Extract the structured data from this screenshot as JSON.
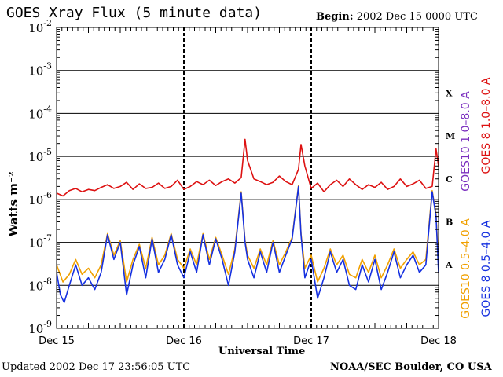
{
  "header": {
    "title": "GOES Xray Flux (5 minute data)",
    "begin_label": "Begin:",
    "begin_value": "2002 Dec 15 0000 UTC"
  },
  "footer": {
    "updated": "Updated 2002 Dec 17 23:56:05 UTC",
    "source": "NOAA/SEC Boulder, CO USA"
  },
  "colors": {
    "goes10_long": "#7b2fbf",
    "goes8_long": "#dd1111",
    "goes10_short": "#f0a000",
    "goes8_short": "#1530e0",
    "grid": "#000000"
  },
  "chart_data": {
    "type": "line",
    "title": "GOES Xray Flux (5 minute data)",
    "xlabel": "Universal Time",
    "ylabel": "Watts m⁻²",
    "y_scale": "log",
    "ylim": [
      1e-09,
      0.01
    ],
    "y_ticks": [
      {
        "value": 0.01,
        "base": "10",
        "exp": "-2"
      },
      {
        "value": 0.001,
        "base": "10",
        "exp": "-3"
      },
      {
        "value": 0.0001,
        "base": "10",
        "exp": "-4"
      },
      {
        "value": 1e-05,
        "base": "10",
        "exp": "-5"
      },
      {
        "value": 1e-06,
        "base": "10",
        "exp": "-6"
      },
      {
        "value": 1e-07,
        "base": "10",
        "exp": "-7"
      },
      {
        "value": 1e-08,
        "base": "10",
        "exp": "-8"
      },
      {
        "value": 1e-09,
        "base": "10",
        "exp": "-9"
      }
    ],
    "x_range_days": [
      0,
      3
    ],
    "x_ticks": [
      {
        "day": 0,
        "label": "Dec 15"
      },
      {
        "day": 1,
        "label": "Dec 16"
      },
      {
        "day": 2,
        "label": "Dec 17"
      },
      {
        "day": 3,
        "label": "Dec 18"
      }
    ],
    "flare_classes": [
      {
        "label": "X",
        "value": 0.0003
      },
      {
        "label": "M",
        "value": 3e-05
      },
      {
        "label": "C",
        "value": 3e-06
      },
      {
        "label": "B",
        "value": 3e-07
      },
      {
        "label": "A",
        "value": 3e-08
      }
    ],
    "legend": {
      "goes10_long": "GOES10 1.0–8.0 A",
      "goes8_long": "GOES 8 1.0–8.0 A",
      "goes10_short": "GOES10 0.5–4.0 A",
      "goes8_short": "GOES 8 0.5–4.0 A"
    },
    "series": [
      {
        "name": "GOES 8 1.0–8.0 A",
        "color": "#dd1111",
        "x": [
          0,
          0.05,
          0.1,
          0.15,
          0.2,
          0.25,
          0.3,
          0.35,
          0.4,
          0.45,
          0.5,
          0.55,
          0.6,
          0.65,
          0.7,
          0.75,
          0.8,
          0.85,
          0.9,
          0.95,
          1.0,
          1.05,
          1.1,
          1.15,
          1.2,
          1.25,
          1.3,
          1.35,
          1.4,
          1.45,
          1.48,
          1.5,
          1.55,
          1.6,
          1.65,
          1.7,
          1.75,
          1.8,
          1.85,
          1.9,
          1.92,
          1.95,
          2.0,
          2.05,
          2.1,
          2.15,
          2.2,
          2.25,
          2.3,
          2.35,
          2.4,
          2.45,
          2.5,
          2.55,
          2.6,
          2.65,
          2.7,
          2.75,
          2.8,
          2.85,
          2.9,
          2.95,
          2.98,
          3.0
        ],
        "y": [
          1.4e-06,
          1.2e-06,
          1.6e-06,
          1.8e-06,
          1.5e-06,
          1.7e-06,
          1.6e-06,
          1.9e-06,
          2.2e-06,
          1.8e-06,
          2e-06,
          2.5e-06,
          1.7e-06,
          2.3e-06,
          1.8e-06,
          1.9e-06,
          2.4e-06,
          1.8e-06,
          2e-06,
          2.8e-06,
          1.7e-06,
          2e-06,
          2.6e-06,
          2.2e-06,
          2.8e-06,
          2.1e-06,
          2.6e-06,
          3e-06,
          2.4e-06,
          3.2e-06,
          2.5e-05,
          8e-06,
          3e-06,
          2.6e-06,
          2.2e-06,
          2.5e-06,
          3.5e-06,
          2.6e-06,
          2.2e-06,
          5e-06,
          1.9e-05,
          6e-06,
          1.8e-06,
          2.4e-06,
          1.5e-06,
          2.2e-06,
          2.8e-06,
          2e-06,
          3e-06,
          2.2e-06,
          1.7e-06,
          2.2e-06,
          1.9e-06,
          2.5e-06,
          1.7e-06,
          2e-06,
          3e-06,
          2e-06,
          2.3e-06,
          2.8e-06,
          1.8e-06,
          2e-06,
          1.5e-05,
          6e-06
        ]
      },
      {
        "name": "GOES 8 0.5–4.0 A",
        "color": "#1530e0",
        "x": [
          0,
          0.03,
          0.06,
          0.1,
          0.15,
          0.2,
          0.25,
          0.3,
          0.35,
          0.4,
          0.45,
          0.5,
          0.55,
          0.6,
          0.65,
          0.7,
          0.75,
          0.8,
          0.85,
          0.9,
          0.95,
          1.0,
          1.05,
          1.1,
          1.15,
          1.2,
          1.25,
          1.3,
          1.35,
          1.4,
          1.45,
          1.48,
          1.5,
          1.55,
          1.6,
          1.65,
          1.7,
          1.75,
          1.8,
          1.85,
          1.9,
          1.92,
          1.95,
          2.0,
          2.05,
          2.1,
          2.15,
          2.2,
          2.25,
          2.3,
          2.35,
          2.4,
          2.45,
          2.5,
          2.55,
          2.6,
          2.65,
          2.7,
          2.75,
          2.8,
          2.85,
          2.9,
          2.95,
          2.98,
          3.0
        ],
        "y": [
          2e-08,
          6e-09,
          4e-09,
          1e-08,
          3e-08,
          1e-08,
          1.5e-08,
          8e-09,
          2e-08,
          1.5e-07,
          4e-08,
          1e-07,
          6e-09,
          3e-08,
          8e-08,
          1.5e-08,
          1.2e-07,
          2e-08,
          4e-08,
          1.5e-07,
          3e-08,
          1.5e-08,
          6e-08,
          2e-08,
          1.5e-07,
          3e-08,
          1.2e-07,
          4e-08,
          1e-08,
          6e-08,
          1.4e-06,
          1e-07,
          4e-08,
          1.5e-08,
          6e-08,
          2e-08,
          1e-07,
          2e-08,
          5e-08,
          1.2e-07,
          2e-06,
          1.5e-07,
          1.5e-08,
          4e-08,
          5e-09,
          1.5e-08,
          6e-08,
          2e-08,
          4e-08,
          1e-08,
          8e-09,
          3e-08,
          1.2e-08,
          4e-08,
          8e-09,
          2e-08,
          6e-08,
          1.5e-08,
          3e-08,
          5e-08,
          2e-08,
          3e-08,
          1.5e-06,
          4e-07,
          2e-08
        ]
      },
      {
        "name": "GOES10 0.5–4.0 A",
        "color": "#f0a000",
        "x": [
          0,
          0.05,
          0.1,
          0.15,
          0.2,
          0.25,
          0.3,
          0.35,
          0.4,
          0.45,
          0.5,
          0.55,
          0.6,
          0.65,
          0.7,
          0.75,
          0.8,
          0.85,
          0.9,
          0.95,
          1.0,
          1.05,
          1.1,
          1.15,
          1.2,
          1.25,
          1.3,
          1.35,
          1.4,
          1.45,
          1.48,
          1.5,
          1.55,
          1.6,
          1.65,
          1.7,
          1.75,
          1.8,
          1.85,
          1.9,
          1.92,
          1.95,
          2.0,
          2.05,
          2.1,
          2.15,
          2.2,
          2.25,
          2.3,
          2.35,
          2.4,
          2.45,
          2.5,
          2.55,
          2.6,
          2.65,
          2.7,
          2.75,
          2.8,
          2.85,
          2.9,
          2.95,
          2.98,
          3.0
        ],
        "y": [
          3e-08,
          1.2e-08,
          1.8e-08,
          4e-08,
          1.8e-08,
          2.5e-08,
          1.5e-08,
          3e-08,
          1.6e-07,
          5e-08,
          1.1e-07,
          1.2e-08,
          4e-08,
          9e-08,
          2.5e-08,
          1.3e-07,
          3e-08,
          5e-08,
          1.6e-07,
          4e-08,
          2.5e-08,
          7e-08,
          3e-08,
          1.6e-07,
          4e-08,
          1.3e-07,
          5e-08,
          1.8e-08,
          7e-08,
          1.5e-06,
          1.1e-07,
          5e-08,
          2.5e-08,
          7e-08,
          3e-08,
          1.1e-07,
          3e-08,
          6e-08,
          1.3e-07,
          2.1e-06,
          1.6e-07,
          2.5e-08,
          5e-08,
          1.2e-08,
          2.5e-08,
          7e-08,
          3e-08,
          5e-08,
          1.8e-08,
          1.5e-08,
          4e-08,
          2e-08,
          5e-08,
          1.5e-08,
          3e-08,
          7e-08,
          2.5e-08,
          4e-08,
          6e-08,
          3e-08,
          4e-08,
          1.6e-06,
          4.5e-07,
          3e-08
        ]
      }
    ]
  }
}
